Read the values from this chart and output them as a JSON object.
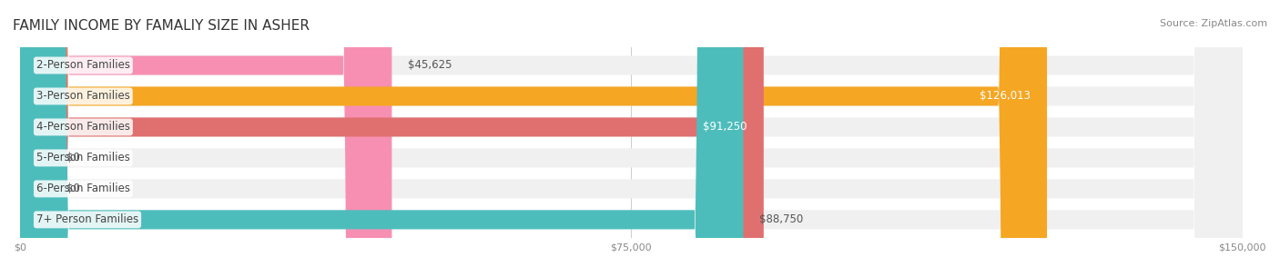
{
  "title": "FAMILY INCOME BY FAMALIY SIZE IN ASHER",
  "source": "Source: ZipAtlas.com",
  "categories": [
    "2-Person Families",
    "3-Person Families",
    "4-Person Families",
    "5-Person Families",
    "6-Person Families",
    "7+ Person Families"
  ],
  "values": [
    45625,
    126013,
    91250,
    0,
    0,
    88750
  ],
  "bar_colors": [
    "#f78fb3",
    "#f5a623",
    "#e07070",
    "#aab8d8",
    "#c3aed6",
    "#4dbdbc"
  ],
  "label_colors": [
    "#555555",
    "#ffffff",
    "#ffffff",
    "#555555",
    "#555555",
    "#555555"
  ],
  "bar_bg_color": "#f0f0f0",
  "bar_label_inside": [
    false,
    true,
    true,
    false,
    false,
    false
  ],
  "xlim": [
    0,
    150000
  ],
  "xtick_labels": [
    "$0",
    "$75,000",
    "$150,000"
  ],
  "xtick_values": [
    0,
    75000,
    150000
  ],
  "title_fontsize": 11,
  "source_fontsize": 8,
  "label_fontsize": 8.5,
  "value_fontsize": 8.5,
  "background_color": "#ffffff",
  "bar_height": 0.62,
  "bar_bg_alpha": 1.0
}
